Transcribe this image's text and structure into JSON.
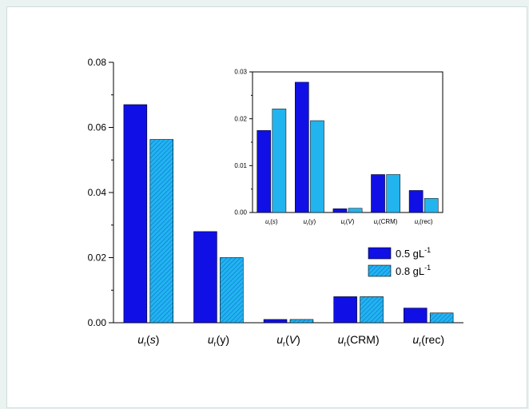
{
  "chart_data": [
    {
      "type": "bar",
      "categories": [
        "(s)",
        "(y)",
        "(V)",
        "(CRM)",
        "(rec)"
      ],
      "category_prefix": "u",
      "category_subscript": "r",
      "series": [
        {
          "name": "0.5 gL-1",
          "values": [
            0.067,
            0.028,
            0.001,
            0.008,
            0.0045
          ]
        },
        {
          "name": "0.8 gL-1",
          "values": [
            0.0563,
            0.02,
            0.001,
            0.008,
            0.003
          ]
        }
      ],
      "ylim": [
        0,
        0.08
      ],
      "yticks": [
        "0.00",
        "0.02",
        "0.04",
        "0.06",
        "0.08"
      ],
      "legend": {
        "position": "right",
        "entries": [
          {
            "base": "0.5 gL",
            "sup": "-1"
          },
          {
            "base": "0.8 gL",
            "sup": "-1"
          }
        ]
      },
      "colors": {
        "series1": "#1010e6",
        "series2": "#22b4ee",
        "hatch": "#0a6fd8"
      },
      "grid": false
    },
    {
      "type": "bar",
      "inset": true,
      "categories": [
        "(s)",
        "(y)",
        "(V)",
        "(CRM)",
        "(rec)"
      ],
      "category_prefix": "u",
      "category_subscript": "r",
      "series": [
        {
          "name": "0.5 gL-1",
          "values": [
            0.0175,
            0.0278,
            0.0008,
            0.0081,
            0.0047
          ]
        },
        {
          "name": "0.8 gL-1",
          "values": [
            0.0221,
            0.0196,
            0.0009,
            0.0081,
            0.003
          ]
        }
      ],
      "ylim": [
        0,
        0.03
      ],
      "yticks": [
        "0.00",
        "0.01",
        "0.02",
        "0.03"
      ],
      "colors": {
        "series1": "#1010e6",
        "series2": "#22b4ee"
      },
      "grid": false
    }
  ]
}
